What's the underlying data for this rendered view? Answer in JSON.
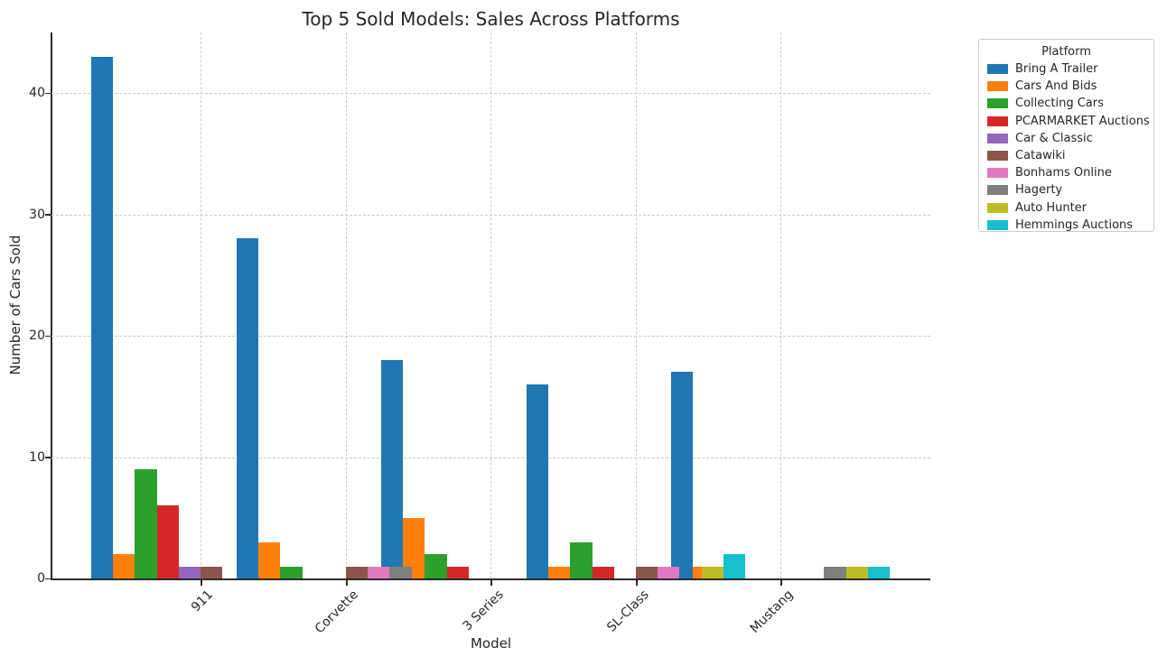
{
  "chart_data": {
    "type": "bar",
    "title": "Top 5 Sold Models: Sales Across Platforms",
    "xlabel": "Model",
    "ylabel": "Number of Cars Sold",
    "categories": [
      "911",
      "Corvette",
      "3 Series",
      "SL-Class",
      "Mustang"
    ],
    "series": [
      {
        "name": "Bring A Trailer",
        "color": "#1f77b4",
        "values": [
          43,
          28,
          18,
          16,
          17
        ]
      },
      {
        "name": "Cars And Bids",
        "color": "#ff7f0e",
        "values": [
          2,
          3,
          5,
          1,
          1
        ]
      },
      {
        "name": "Collecting Cars",
        "color": "#2ca02c",
        "values": [
          9,
          1,
          2,
          3,
          0
        ]
      },
      {
        "name": "PCARMARKET Auctions",
        "color": "#d62728",
        "values": [
          6,
          0,
          1,
          1,
          0
        ]
      },
      {
        "name": "Car & Classic",
        "color": "#9467bd",
        "values": [
          1,
          0,
          0,
          0,
          0
        ]
      },
      {
        "name": "Catawiki",
        "color": "#8c564b",
        "values": [
          1,
          1,
          0,
          1,
          0
        ]
      },
      {
        "name": "Bonhams Online",
        "color": "#e377c2",
        "values": [
          0,
          1,
          0,
          1,
          0
        ]
      },
      {
        "name": "Hagerty",
        "color": "#7f7f7f",
        "values": [
          0,
          1,
          0,
          0,
          1
        ]
      },
      {
        "name": "Auto Hunter",
        "color": "#bcbd22",
        "values": [
          0,
          0,
          0,
          1,
          1
        ]
      },
      {
        "name": "Hemmings Auctions",
        "color": "#17becf",
        "values": [
          0,
          0,
          0,
          2,
          1
        ]
      }
    ],
    "yticks": [
      0,
      10,
      20,
      30,
      40
    ],
    "ylim": [
      0,
      45
    ],
    "grid": true,
    "grid_style": "dashed",
    "legend": {
      "title": "Platform",
      "position": "outside-upper-right"
    },
    "xtick_rotation": 45
  }
}
